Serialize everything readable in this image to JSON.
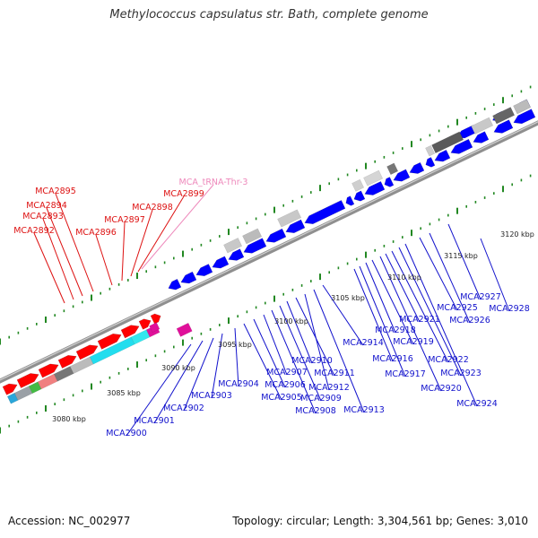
{
  "title": "Methylococcus capsulatus str. Bath, complete genome",
  "footer": {
    "accession": "Accession: NC_002977",
    "summary": "Topology: circular; Length: 3,304,561 bp; Genes: 3,010"
  },
  "colors": {
    "forward_label": "#dd1111",
    "reverse_label": "#1111cc",
    "trna_label": "#ee88bb",
    "forward_gene": "#ff0000",
    "reverse_gene": "#0000ff",
    "tick": "#228822"
  },
  "scale": {
    "unit": "kbp",
    "labels": [
      "3080 kbp",
      "3085 kbp",
      "3090 kbp",
      "3095 kbp",
      "3100 kbp",
      "3105 kbp",
      "3110 kbp",
      "3115 kbp",
      "3120 kbp"
    ]
  },
  "forward_genes": [
    "MCA2892",
    "MCA2893",
    "MCA2894",
    "MCA2895",
    "MCA2896",
    "MCA2897",
    "MCA2898",
    "MCA2899"
  ],
  "trna_genes": [
    "MCA_tRNA-Thr-3"
  ],
  "reverse_genes": [
    "MCA2900",
    "MCA2901",
    "MCA2902",
    "MCA2903",
    "MCA2904",
    "MCA2905",
    "MCA2906",
    "MCA2907",
    "MCA2908",
    "MCA2909",
    "MCA2910",
    "MCA2911",
    "MCA2912",
    "MCA2913",
    "MCA2914",
    "MCA2916",
    "MCA2917",
    "MCA2918",
    "MCA2919",
    "MCA2920",
    "MCA2921",
    "MCA2922",
    "MCA2923",
    "MCA2924",
    "MCA2925",
    "MCA2926",
    "MCA2927",
    "MCA2928"
  ]
}
